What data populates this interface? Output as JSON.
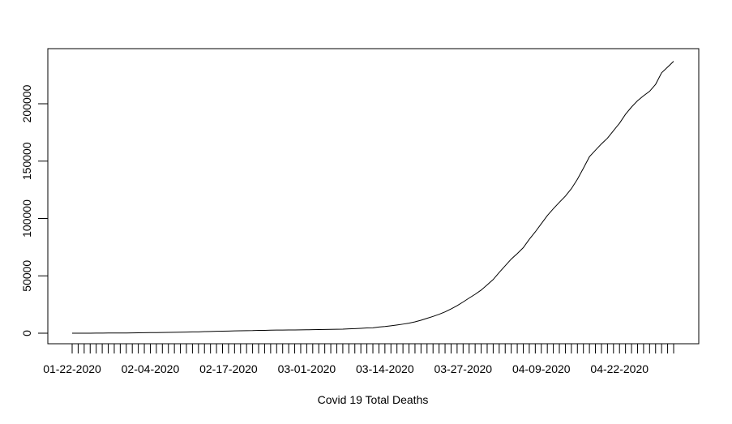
{
  "chart_data": {
    "type": "line",
    "title": "",
    "xlabel": "Covid 19 Total Deaths",
    "ylabel": "",
    "x_start": "01-22-2020",
    "x_end": "04-28-2020",
    "ylim": [
      0,
      237000
    ],
    "x_tick_labels": [
      "01-22-2020",
      "02-04-2020",
      "02-17-2020",
      "03-01-2020",
      "03-14-2020",
      "03-27-2020",
      "04-09-2020",
      "04-22-2020"
    ],
    "y_tick_labels": [
      "0",
      "50000",
      "100000",
      "150000",
      "200000"
    ],
    "y_tick_values": [
      0,
      50000,
      100000,
      150000,
      200000
    ],
    "grid": false,
    "series": [
      {
        "values": [
          17,
          18,
          26,
          42,
          56,
          82,
          131,
          133,
          171,
          213,
          259,
          362,
          426,
          492,
          564,
          634,
          719,
          806,
          906,
          1013,
          1113,
          1118,
          1371,
          1523,
          1666,
          1770,
          1868,
          2007,
          2122,
          2247,
          2251,
          2458,
          2469,
          2629,
          2708,
          2770,
          2814,
          2872,
          2941,
          2996,
          3085,
          3160,
          3254,
          3348,
          3460,
          3558,
          3802,
          3988,
          4262,
          4615,
          4720,
          5404,
          5819,
          6440,
          7126,
          7905,
          8733,
          9867,
          11299,
          12973,
          14623,
          16497,
          18615,
          21181,
          23970,
          27198,
          30652,
          33925,
          37582,
          42107,
          46809,
          52983,
          58787,
          64606,
          69374,
          74565,
          81865,
          88338,
          95455,
          102525,
          108503,
          114091,
          119482,
          125984,
          134177,
          143800,
          153822,
          159510,
          165044,
          169986,
          176583,
          183027,
          190858,
          197159,
          202668,
          206997,
          210823,
          216930,
          227000,
          232000,
          237000
        ]
      }
    ]
  }
}
